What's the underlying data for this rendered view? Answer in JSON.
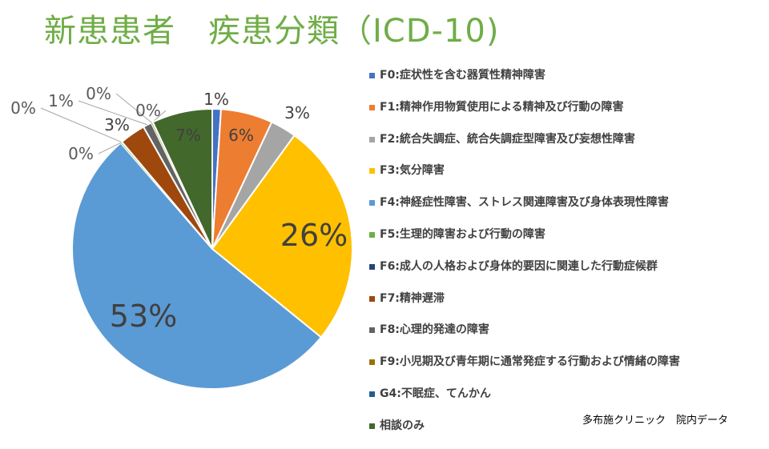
{
  "title": "新患患者　疾患分類（ICD-10)",
  "source_note": "多布施クリニック　院内データ",
  "chart_data": {
    "type": "pie",
    "slices": [
      {
        "code": "F0",
        "label": "F0:症状性を含む器質性精神障害",
        "value": 1,
        "value_label": "1%",
        "color": "#4472C4"
      },
      {
        "code": "F1",
        "label": "F1:精神作用物質使用による精神及び行動の障害",
        "value": 6,
        "value_label": "6%",
        "color": "#ED7D31"
      },
      {
        "code": "F2",
        "label": "F2:統合失調症、統合失調症型障害及び妄想性障害",
        "value": 3,
        "value_label": "3%",
        "color": "#A5A5A5"
      },
      {
        "code": "F3",
        "label": "F3:気分障害",
        "value": 26,
        "value_label": "26%",
        "color": "#FFC000"
      },
      {
        "code": "F4",
        "label": "F4:神経症性障害、ストレス関連障害及び身体表現性障害",
        "value": 53,
        "value_label": "53%",
        "color": "#5B9BD5"
      },
      {
        "code": "F5",
        "label": "F5:生理的障害および行動の障害",
        "value": 0,
        "value_label": "0%",
        "color": "#70AD47"
      },
      {
        "code": "F6",
        "label": "F6:成人の人格および身体的要因に関連した行動症候群",
        "value": 0,
        "value_label": "0%",
        "color": "#264478"
      },
      {
        "code": "F7",
        "label": "F7:精神遅滞",
        "value": 3,
        "value_label": "3%",
        "color": "#9E480E"
      },
      {
        "code": "F8",
        "label": "F8:心理的発達の障害",
        "value": 1,
        "value_label": "1%",
        "color": "#636363"
      },
      {
        "code": "F9",
        "label": "F9:小児期及び青年期に通常発症する行動および情緒の障害",
        "value": 0,
        "value_label": "0%",
        "color": "#997300"
      },
      {
        "code": "G4",
        "label": "G4:不眠症、てんかん",
        "value": 0,
        "value_label": "0%",
        "color": "#255E91"
      },
      {
        "code": "consult",
        "label": "相談のみ",
        "value": 7,
        "value_label": "7%",
        "color": "#43682B"
      }
    ]
  }
}
